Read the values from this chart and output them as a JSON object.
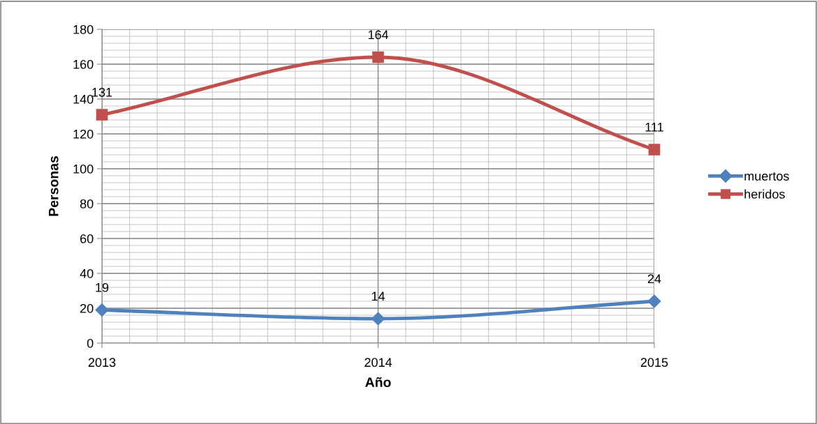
{
  "chart_data": {
    "type": "line",
    "xlabel": "Año",
    "ylabel": "Personas",
    "x": [
      2013,
      2014,
      2015
    ],
    "xlim": [
      2013,
      2015
    ],
    "xticks": [
      2013,
      2014,
      2015
    ],
    "ylim": [
      0,
      180
    ],
    "yticks": [
      0,
      20,
      40,
      60,
      80,
      100,
      120,
      140,
      160,
      180
    ],
    "grid": true,
    "legend": "right",
    "data_labels": true,
    "line_style": "solid",
    "series": [
      {
        "name": "muertos",
        "color": "#4f81bd",
        "marker": "diamond",
        "values": [
          19,
          14,
          24
        ]
      },
      {
        "name": "heridos",
        "color": "#c0504d",
        "marker": "square",
        "values": [
          131,
          164,
          111
        ]
      }
    ]
  }
}
